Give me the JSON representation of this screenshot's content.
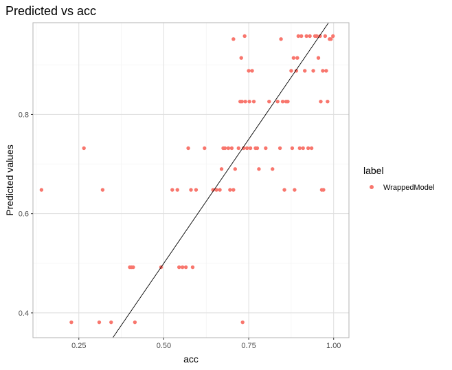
{
  "chart_data": {
    "type": "scatter",
    "title": "Predicted vs acc",
    "xlabel": "acc",
    "ylabel": "Predicted values",
    "xlim": [
      0.115,
      1.045
    ],
    "ylim": [
      0.35,
      0.985
    ],
    "x_ticks": [
      0.25,
      0.5,
      0.75,
      1.0
    ],
    "x_tick_labels": [
      "0.25",
      "0.50",
      "0.75",
      "1.00"
    ],
    "y_ticks": [
      0.4,
      0.6,
      0.8
    ],
    "y_tick_labels": [
      "0.4",
      "0.6",
      "0.8"
    ],
    "grid": true,
    "legend": {
      "title": "label",
      "position": "right",
      "entries": [
        "WrappedModel"
      ]
    },
    "reference_line": {
      "slope": 1,
      "intercept": 0,
      "color": "#000000"
    },
    "series": [
      {
        "name": "WrappedModel",
        "color": "#F8766D",
        "points": [
          [
            0.14,
            0.648
          ],
          [
            0.228,
            0.381
          ],
          [
            0.265,
            0.732
          ],
          [
            0.31,
            0.381
          ],
          [
            0.32,
            0.648
          ],
          [
            0.345,
            0.381
          ],
          [
            0.4,
            0.492
          ],
          [
            0.405,
            0.492
          ],
          [
            0.41,
            0.492
          ],
          [
            0.415,
            0.381
          ],
          [
            0.492,
            0.492
          ],
          [
            0.525,
            0.648
          ],
          [
            0.54,
            0.648
          ],
          [
            0.545,
            0.492
          ],
          [
            0.555,
            0.492
          ],
          [
            0.565,
            0.492
          ],
          [
            0.572,
            0.732
          ],
          [
            0.58,
            0.648
          ],
          [
            0.585,
            0.492
          ],
          [
            0.595,
            0.648
          ],
          [
            0.62,
            0.732
          ],
          [
            0.645,
            0.648
          ],
          [
            0.655,
            0.648
          ],
          [
            0.665,
            0.648
          ],
          [
            0.67,
            0.69
          ],
          [
            0.675,
            0.732
          ],
          [
            0.68,
            0.732
          ],
          [
            0.69,
            0.732
          ],
          [
            0.695,
            0.648
          ],
          [
            0.7,
            0.732
          ],
          [
            0.705,
            0.648
          ],
          [
            0.705,
            0.952
          ],
          [
            0.71,
            0.69
          ],
          [
            0.72,
            0.732
          ],
          [
            0.725,
            0.826
          ],
          [
            0.728,
            0.914
          ],
          [
            0.73,
            0.826
          ],
          [
            0.732,
            0.381
          ],
          [
            0.735,
            0.732
          ],
          [
            0.738,
            0.958
          ],
          [
            0.74,
            0.826
          ],
          [
            0.745,
            0.732
          ],
          [
            0.75,
            0.888
          ],
          [
            0.752,
            0.826
          ],
          [
            0.755,
            0.732
          ],
          [
            0.76,
            0.888
          ],
          [
            0.765,
            0.826
          ],
          [
            0.77,
            0.732
          ],
          [
            0.775,
            0.732
          ],
          [
            0.78,
            0.69
          ],
          [
            0.8,
            0.732
          ],
          [
            0.81,
            0.826
          ],
          [
            0.82,
            0.69
          ],
          [
            0.835,
            0.826
          ],
          [
            0.842,
            0.732
          ],
          [
            0.845,
            0.952
          ],
          [
            0.85,
            0.826
          ],
          [
            0.855,
            0.648
          ],
          [
            0.86,
            0.826
          ],
          [
            0.865,
            0.826
          ],
          [
            0.875,
            0.888
          ],
          [
            0.878,
            0.732
          ],
          [
            0.882,
            0.914
          ],
          [
            0.885,
            0.648
          ],
          [
            0.89,
            0.888
          ],
          [
            0.893,
            0.914
          ],
          [
            0.896,
            0.958
          ],
          [
            0.9,
            0.732
          ],
          [
            0.905,
            0.958
          ],
          [
            0.91,
            0.732
          ],
          [
            0.915,
            0.888
          ],
          [
            0.92,
            0.958
          ],
          [
            0.925,
            0.732
          ],
          [
            0.93,
            0.958
          ],
          [
            0.935,
            0.732
          ],
          [
            0.94,
            0.888
          ],
          [
            0.945,
            0.958
          ],
          [
            0.95,
            0.958
          ],
          [
            0.955,
            0.914
          ],
          [
            0.96,
            0.958
          ],
          [
            0.962,
            0.826
          ],
          [
            0.965,
            0.648
          ],
          [
            0.968,
            0.888
          ],
          [
            0.97,
            0.648
          ],
          [
            0.975,
            0.958
          ],
          [
            0.978,
            0.888
          ],
          [
            0.982,
            0.826
          ],
          [
            0.988,
            0.952
          ],
          [
            0.992,
            0.952
          ],
          [
            0.998,
            0.958
          ]
        ]
      }
    ]
  }
}
